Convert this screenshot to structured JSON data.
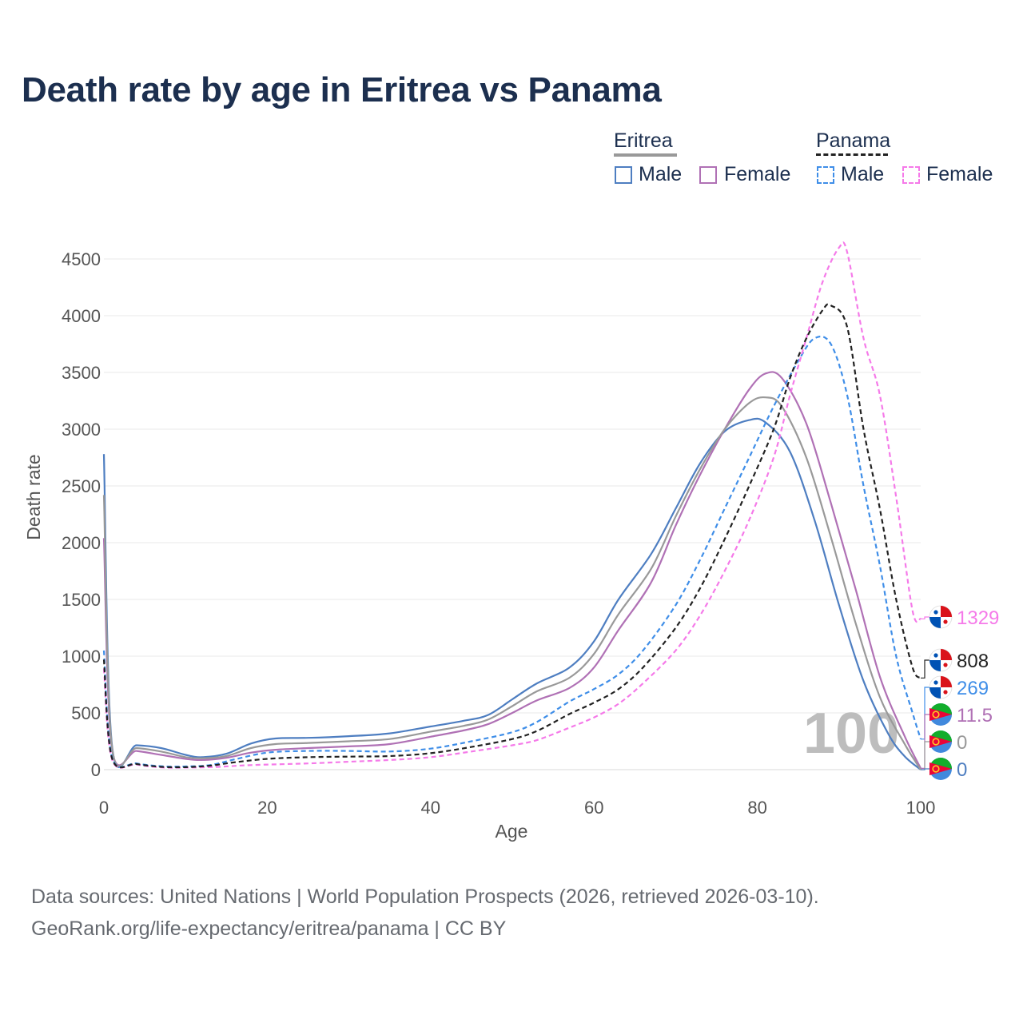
{
  "header": {
    "title": "Death rate by age in Eritrea vs Panama"
  },
  "legend": {
    "groups": [
      {
        "label": "Eritrea",
        "items": [
          {
            "label": "Male",
            "color": "#4e7ec1"
          },
          {
            "label": "Female",
            "color": "#b071b5"
          }
        ]
      },
      {
        "label": "Panama",
        "items": [
          {
            "label": "Male",
            "color": "#3f8ee8"
          },
          {
            "label": "Female",
            "color": "#f57ae9"
          }
        ]
      }
    ],
    "group_colors": [
      "#999999",
      "#222222"
    ]
  },
  "chart_data": {
    "type": "line",
    "xlabel": "Age",
    "ylabel": "Death rate",
    "xlim": [
      0,
      100
    ],
    "ylim": [
      0,
      4500
    ],
    "xticks": [
      0,
      20,
      40,
      60,
      80,
      100
    ],
    "yticks": [
      0,
      500,
      1000,
      1500,
      2000,
      2500,
      3000,
      3500,
      4000,
      4500
    ],
    "grid": true,
    "watermark": "100",
    "series": [
      {
        "name": "Eritrea Male",
        "color": "#4e7ec1",
        "dash": false,
        "end_label": "0",
        "points": [
          [
            0,
            2780
          ],
          [
            1,
            210
          ],
          [
            4,
            215
          ],
          [
            7,
            190
          ],
          [
            10,
            130
          ],
          [
            12,
            110
          ],
          [
            15,
            140
          ],
          [
            18,
            230
          ],
          [
            21,
            275
          ],
          [
            25,
            280
          ],
          [
            30,
            295
          ],
          [
            35,
            320
          ],
          [
            40,
            380
          ],
          [
            44,
            430
          ],
          [
            47,
            480
          ],
          [
            50,
            620
          ],
          [
            53,
            760
          ],
          [
            57,
            900
          ],
          [
            60,
            1130
          ],
          [
            63,
            1500
          ],
          [
            67,
            1900
          ],
          [
            70,
            2300
          ],
          [
            73,
            2700
          ],
          [
            76,
            2980
          ],
          [
            79,
            3080
          ],
          [
            81,
            3060
          ],
          [
            84,
            2800
          ],
          [
            87,
            2200
          ],
          [
            90,
            1450
          ],
          [
            93,
            780
          ],
          [
            96,
            320
          ],
          [
            98,
            120
          ],
          [
            100,
            0
          ]
        ]
      },
      {
        "name": "Eritrea Female",
        "color": "#b071b5",
        "dash": false,
        "end_label": "11.5",
        "points": [
          [
            0,
            2040
          ],
          [
            1,
            180
          ],
          [
            4,
            165
          ],
          [
            7,
            130
          ],
          [
            10,
            95
          ],
          [
            12,
            85
          ],
          [
            15,
            105
          ],
          [
            18,
            150
          ],
          [
            21,
            175
          ],
          [
            25,
            190
          ],
          [
            30,
            205
          ],
          [
            35,
            225
          ],
          [
            40,
            290
          ],
          [
            44,
            345
          ],
          [
            47,
            400
          ],
          [
            50,
            500
          ],
          [
            53,
            610
          ],
          [
            57,
            720
          ],
          [
            60,
            900
          ],
          [
            63,
            1230
          ],
          [
            67,
            1650
          ],
          [
            70,
            2150
          ],
          [
            73,
            2600
          ],
          [
            76,
            3000
          ],
          [
            79,
            3350
          ],
          [
            81,
            3490
          ],
          [
            83,
            3450
          ],
          [
            86,
            3050
          ],
          [
            89,
            2350
          ],
          [
            92,
            1600
          ],
          [
            95,
            820
          ],
          [
            98,
            300
          ],
          [
            100,
            11.5
          ]
        ]
      },
      {
        "name": "Eritrea",
        "color": "#999999",
        "dash": false,
        "end_label": "0",
        "points": [
          [
            0,
            2420
          ],
          [
            1,
            195
          ],
          [
            4,
            190
          ],
          [
            7,
            160
          ],
          [
            10,
            110
          ],
          [
            12,
            100
          ],
          [
            15,
            120
          ],
          [
            18,
            190
          ],
          [
            21,
            225
          ],
          [
            25,
            235
          ],
          [
            30,
            250
          ],
          [
            35,
            270
          ],
          [
            40,
            335
          ],
          [
            44,
            385
          ],
          [
            47,
            440
          ],
          [
            50,
            560
          ],
          [
            53,
            690
          ],
          [
            57,
            810
          ],
          [
            60,
            1020
          ],
          [
            63,
            1370
          ],
          [
            67,
            1770
          ],
          [
            70,
            2230
          ],
          [
            73,
            2650
          ],
          [
            76,
            3000
          ],
          [
            79,
            3230
          ],
          [
            81,
            3280
          ],
          [
            83,
            3200
          ],
          [
            86,
            2750
          ],
          [
            89,
            2050
          ],
          [
            92,
            1300
          ],
          [
            95,
            640
          ],
          [
            98,
            230
          ],
          [
            100,
            0
          ]
        ]
      },
      {
        "name": "Panama Male",
        "color": "#3f8ee8",
        "dash": true,
        "end_label": "269",
        "points": [
          [
            0,
            1050
          ],
          [
            1,
            110
          ],
          [
            4,
            55
          ],
          [
            7,
            30
          ],
          [
            10,
            28
          ],
          [
            13,
            40
          ],
          [
            16,
            90
          ],
          [
            20,
            150
          ],
          [
            25,
            165
          ],
          [
            30,
            165
          ],
          [
            35,
            160
          ],
          [
            40,
            185
          ],
          [
            45,
            250
          ],
          [
            50,
            330
          ],
          [
            53,
            420
          ],
          [
            57,
            600
          ],
          [
            60,
            710
          ],
          [
            63,
            840
          ],
          [
            66,
            1050
          ],
          [
            70,
            1450
          ],
          [
            73,
            1850
          ],
          [
            76,
            2300
          ],
          [
            79,
            2750
          ],
          [
            82,
            3200
          ],
          [
            85,
            3600
          ],
          [
            87,
            3800
          ],
          [
            89,
            3750
          ],
          [
            91,
            3300
          ],
          [
            93,
            2500
          ],
          [
            95,
            1800
          ],
          [
            97,
            1000
          ],
          [
            99,
            500
          ],
          [
            100,
            269
          ]
        ]
      },
      {
        "name": "Panama Female",
        "color": "#f57ae9",
        "dash": true,
        "end_label": "1329",
        "points": [
          [
            0,
            890
          ],
          [
            1,
            90
          ],
          [
            4,
            45
          ],
          [
            7,
            20
          ],
          [
            10,
            18
          ],
          [
            14,
            25
          ],
          [
            18,
            40
          ],
          [
            25,
            55
          ],
          [
            30,
            70
          ],
          [
            35,
            85
          ],
          [
            40,
            110
          ],
          [
            45,
            160
          ],
          [
            50,
            215
          ],
          [
            53,
            260
          ],
          [
            57,
            370
          ],
          [
            60,
            460
          ],
          [
            63,
            580
          ],
          [
            66,
            760
          ],
          [
            70,
            1050
          ],
          [
            73,
            1360
          ],
          [
            76,
            1750
          ],
          [
            79,
            2200
          ],
          [
            82,
            2750
          ],
          [
            84,
            3300
          ],
          [
            86,
            3800
          ],
          [
            88,
            4300
          ],
          [
            90,
            4600
          ],
          [
            91,
            4560
          ],
          [
            93,
            3800
          ],
          [
            95,
            3300
          ],
          [
            97,
            2400
          ],
          [
            99,
            1400
          ],
          [
            100,
            1329
          ]
        ]
      },
      {
        "name": "Panama",
        "color": "#222222",
        "dash": true,
        "end_label": "808",
        "points": [
          [
            0,
            970
          ],
          [
            1,
            100
          ],
          [
            4,
            50
          ],
          [
            7,
            25
          ],
          [
            10,
            22
          ],
          [
            13,
            35
          ],
          [
            16,
            65
          ],
          [
            20,
            95
          ],
          [
            25,
            110
          ],
          [
            30,
            115
          ],
          [
            35,
            120
          ],
          [
            40,
            145
          ],
          [
            45,
            200
          ],
          [
            50,
            270
          ],
          [
            53,
            340
          ],
          [
            57,
            490
          ],
          [
            60,
            590
          ],
          [
            63,
            710
          ],
          [
            66,
            900
          ],
          [
            70,
            1250
          ],
          [
            73,
            1600
          ],
          [
            76,
            2030
          ],
          [
            79,
            2500
          ],
          [
            82,
            3000
          ],
          [
            84,
            3450
          ],
          [
            86,
            3800
          ],
          [
            88,
            4050
          ],
          [
            89,
            4090
          ],
          [
            91,
            3900
          ],
          [
            93,
            3000
          ],
          [
            95,
            2300
          ],
          [
            97,
            1500
          ],
          [
            99,
            900
          ],
          [
            100,
            808
          ]
        ]
      }
    ]
  },
  "source": {
    "line1": "Data sources: United Nations | World Population Prospects (2026, retrieved 2026-03-10).",
    "line2": "GeoRank.org/life-expectancy/eritrea/panama | CC BY"
  }
}
